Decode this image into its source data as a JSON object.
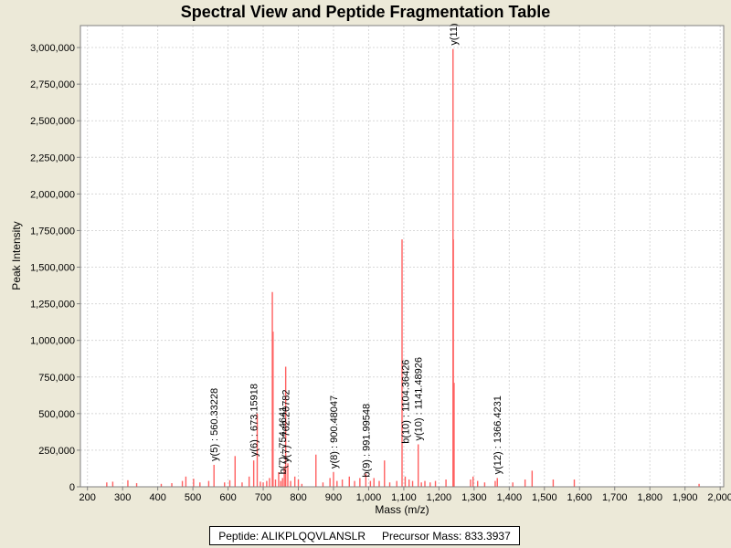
{
  "title": "Spectral View and Peptide Fragmentation Table",
  "footer": {
    "peptide": "Peptide: ALIKPLQQVLANSLR",
    "precursor": "Precursor Mass: 833.3937"
  },
  "chart_data": {
    "type": "bar",
    "title": "Spectral View and Peptide Fragmentation Table",
    "xlabel": "Mass (m/z)",
    "ylabel": "Peak Intensity",
    "xlim": [
      180,
      2010
    ],
    "ylim": [
      0,
      3150000
    ],
    "x_ticks": [
      200,
      300,
      400,
      500,
      600,
      700,
      800,
      900,
      1000,
      1100,
      1200,
      1300,
      1400,
      1500,
      1600,
      1700,
      1800,
      1900,
      2000
    ],
    "x_tick_labels": [
      "200",
      "300",
      "400",
      "500",
      "600",
      "700",
      "800",
      "900",
      "1,000",
      "1,100",
      "1,200",
      "1,300",
      "1,400",
      "1,500",
      "1,600",
      "1,700",
      "1,800",
      "1,900",
      "2,000"
    ],
    "y_ticks": [
      0,
      250000,
      500000,
      750000,
      1000000,
      1250000,
      1500000,
      1750000,
      2000000,
      2250000,
      2500000,
      2750000,
      3000000
    ],
    "y_tick_labels": [
      "0",
      "250,000",
      "500,000",
      "750,000",
      "1,000,000",
      "1,250,000",
      "1,500,000",
      "1,750,000",
      "2,000,000",
      "2,250,000",
      "2,500,000",
      "2,750,000",
      "3,000,000"
    ],
    "grid": true,
    "peak_color": "#ff6060",
    "peaks": [
      {
        "x": 255,
        "y": 30000
      },
      {
        "x": 272,
        "y": 35000
      },
      {
        "x": 315,
        "y": 45000
      },
      {
        "x": 340,
        "y": 25000
      },
      {
        "x": 410,
        "y": 20000
      },
      {
        "x": 440,
        "y": 25000
      },
      {
        "x": 470,
        "y": 40000
      },
      {
        "x": 480,
        "y": 70000
      },
      {
        "x": 502,
        "y": 55000
      },
      {
        "x": 520,
        "y": 30000
      },
      {
        "x": 545,
        "y": 40000
      },
      {
        "x": 560,
        "y": 150000
      },
      {
        "x": 590,
        "y": 30000
      },
      {
        "x": 605,
        "y": 45000
      },
      {
        "x": 620,
        "y": 210000
      },
      {
        "x": 640,
        "y": 30000
      },
      {
        "x": 660,
        "y": 70000
      },
      {
        "x": 673,
        "y": 180000
      },
      {
        "x": 683,
        "y": 500000
      },
      {
        "x": 692,
        "y": 35000
      },
      {
        "x": 700,
        "y": 30000
      },
      {
        "x": 710,
        "y": 40000
      },
      {
        "x": 718,
        "y": 60000
      },
      {
        "x": 726,
        "y": 1330000
      },
      {
        "x": 728,
        "y": 1060000
      },
      {
        "x": 735,
        "y": 50000
      },
      {
        "x": 744,
        "y": 100000
      },
      {
        "x": 750,
        "y": 40000
      },
      {
        "x": 755,
        "y": 60000
      },
      {
        "x": 760,
        "y": 140000
      },
      {
        "x": 764,
        "y": 820000
      },
      {
        "x": 770,
        "y": 160000
      },
      {
        "x": 778,
        "y": 40000
      },
      {
        "x": 790,
        "y": 70000
      },
      {
        "x": 800,
        "y": 50000
      },
      {
        "x": 810,
        "y": 20000
      },
      {
        "x": 850,
        "y": 220000
      },
      {
        "x": 870,
        "y": 30000
      },
      {
        "x": 890,
        "y": 60000
      },
      {
        "x": 900,
        "y": 100000
      },
      {
        "x": 910,
        "y": 40000
      },
      {
        "x": 925,
        "y": 50000
      },
      {
        "x": 945,
        "y": 70000
      },
      {
        "x": 960,
        "y": 40000
      },
      {
        "x": 975,
        "y": 60000
      },
      {
        "x": 992,
        "y": 90000
      },
      {
        "x": 1005,
        "y": 40000
      },
      {
        "x": 1015,
        "y": 60000
      },
      {
        "x": 1030,
        "y": 40000
      },
      {
        "x": 1045,
        "y": 180000
      },
      {
        "x": 1060,
        "y": 30000
      },
      {
        "x": 1080,
        "y": 40000
      },
      {
        "x": 1095,
        "y": 1690000
      },
      {
        "x": 1104,
        "y": 70000
      },
      {
        "x": 1115,
        "y": 50000
      },
      {
        "x": 1125,
        "y": 40000
      },
      {
        "x": 1141,
        "y": 290000
      },
      {
        "x": 1150,
        "y": 30000
      },
      {
        "x": 1160,
        "y": 40000
      },
      {
        "x": 1175,
        "y": 30000
      },
      {
        "x": 1190,
        "y": 40000
      },
      {
        "x": 1220,
        "y": 50000
      },
      {
        "x": 1240,
        "y": 2990000
      },
      {
        "x": 1241,
        "y": 1690000
      },
      {
        "x": 1243,
        "y": 710000
      },
      {
        "x": 1290,
        "y": 50000
      },
      {
        "x": 1297,
        "y": 70000
      },
      {
        "x": 1310,
        "y": 40000
      },
      {
        "x": 1330,
        "y": 30000
      },
      {
        "x": 1360,
        "y": 40000
      },
      {
        "x": 1366,
        "y": 60000
      },
      {
        "x": 1410,
        "y": 30000
      },
      {
        "x": 1445,
        "y": 50000
      },
      {
        "x": 1465,
        "y": 110000
      },
      {
        "x": 1525,
        "y": 50000
      },
      {
        "x": 1585,
        "y": 50000
      },
      {
        "x": 1940,
        "y": 20000
      }
    ],
    "annotations": [
      {
        "x": 560,
        "y": 150000,
        "text": "y(5) : 560.33228"
      },
      {
        "x": 673,
        "y": 180000,
        "text": "y(6) : 673.15918"
      },
      {
        "x": 755,
        "y": 60000,
        "text": "b(7) : 754.4641"
      },
      {
        "x": 764,
        "y": 140000,
        "text": "y(7) : 762.20782"
      },
      {
        "x": 900,
        "y": 100000,
        "text": "y(8) : 900.48047"
      },
      {
        "x": 992,
        "y": 40000,
        "text": "b(9) : 991.99548"
      },
      {
        "x": 1104,
        "y": 270000,
        "text": "b(10) : 1104.36426"
      },
      {
        "x": 1141,
        "y": 290000,
        "text": "y(10) : 1141.48926"
      },
      {
        "x": 1240,
        "y": 2990000,
        "text": "y(11)"
      },
      {
        "x": 1366,
        "y": 60000,
        "text": "y(12) : 1366.4231"
      }
    ]
  }
}
